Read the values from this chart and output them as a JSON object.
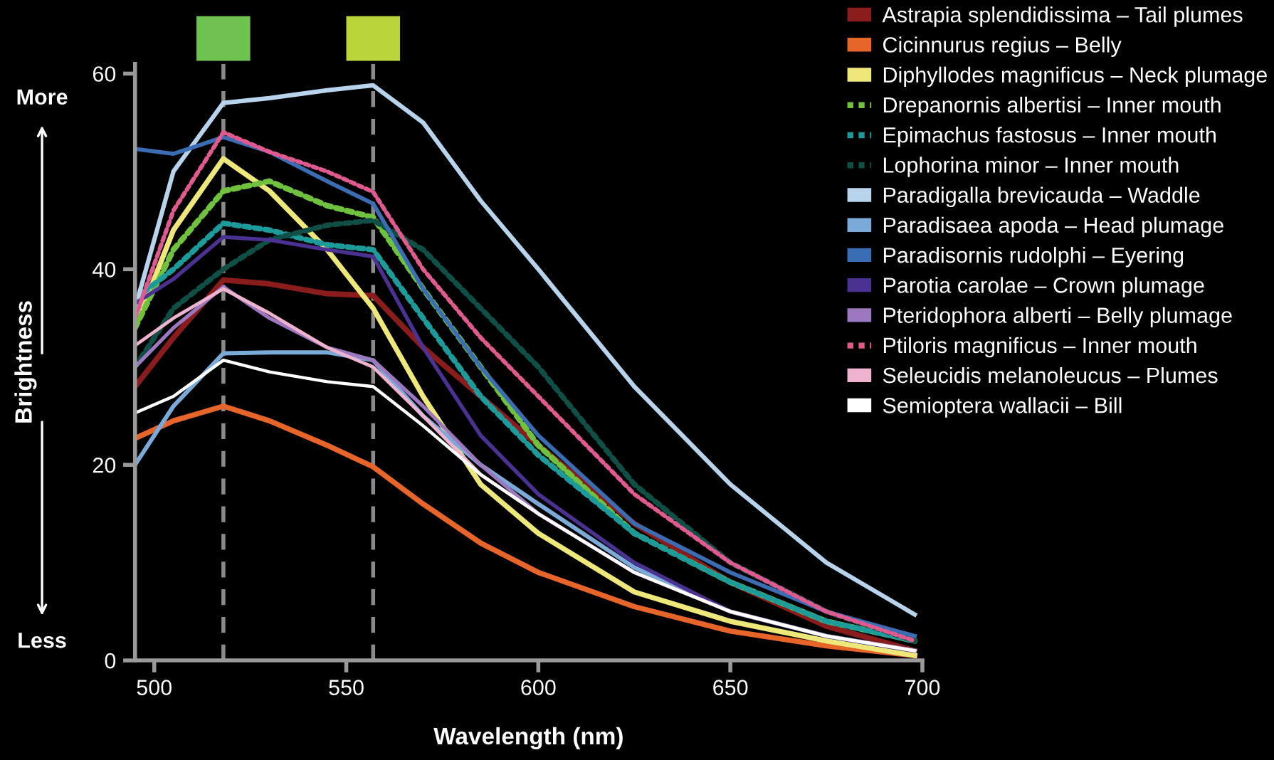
{
  "chart_data": {
    "type": "line",
    "xlabel": "Wavelength (nm)",
    "ylabel": "Brightness",
    "annotations": [
      "More",
      "Less"
    ],
    "x": [
      495,
      505,
      518,
      530,
      545,
      557,
      570,
      585,
      600,
      625,
      650,
      675,
      698
    ],
    "xlim": [
      495,
      700
    ],
    "xticks": [
      500,
      550,
      600,
      650,
      700
    ],
    "ylim": [
      0,
      61
    ],
    "yticks": [
      0,
      20,
      40,
      60
    ],
    "grid": false,
    "legend": "right",
    "marker": "none",
    "ref_lines": [
      {
        "axis": "x",
        "value": 518,
        "color": "#8a8a8a",
        "line_style": "dashed"
      },
      {
        "axis": "x",
        "value": 557,
        "color": "#8a8a8a",
        "line_style": "dashed"
      }
    ],
    "series": [
      {
        "name": "Astrapia splendidissima – Tail plumes",
        "color": "#8b1c1c",
        "line_style": "solid",
        "values": [
          28,
          33,
          38.9,
          38.5,
          37.5,
          37.3,
          32,
          27,
          22,
          14,
          8,
          3.5,
          1
        ]
      },
      {
        "name": "Cicinnurus regius – Belly",
        "color": "#e8652a",
        "line_style": "solid",
        "values": [
          22.7,
          24.5,
          26,
          24.5,
          22,
          19.8,
          16,
          12,
          9,
          5.5,
          3,
          1.5,
          0.5
        ]
      },
      {
        "name": "Diphyllodes magnificus – Neck plumage",
        "color": "#eee77a",
        "line_style": "solid",
        "values": [
          34,
          44,
          51.3,
          48,
          42,
          36,
          27,
          18,
          13,
          7,
          4,
          2,
          0.5
        ]
      },
      {
        "name": "Drepanornis albertisi – Inner mouth",
        "color": "#6fc13e",
        "line_style": "dotted",
        "values": [
          34,
          42,
          48,
          49,
          46.5,
          45.3,
          38,
          30,
          22,
          13,
          8,
          4,
          2
        ]
      },
      {
        "name": "Epimachus fastosus – Inner mouth",
        "color": "#1d9a9a",
        "line_style": "dotted",
        "values": [
          37,
          40,
          44.7,
          44,
          42.5,
          42,
          35,
          27,
          21,
          13,
          8,
          4,
          2
        ]
      },
      {
        "name": "Lophorina minor – Inner mouth",
        "color": "#0f4f45",
        "line_style": "dotted",
        "values": [
          30,
          36,
          40,
          43,
          44.5,
          45,
          42,
          36,
          30,
          18,
          10,
          5,
          2
        ]
      },
      {
        "name": "Paradigalla brevicauda – Waddle",
        "color": "#b8d4ec",
        "line_style": "solid",
        "values": [
          36,
          50,
          57,
          57.5,
          58.3,
          58.8,
          55,
          47,
          40,
          28,
          18,
          10,
          4.7
        ]
      },
      {
        "name": "Paradisaea apoda – Head plumage",
        "color": "#7aaad8",
        "line_style": "solid",
        "values": [
          20,
          26,
          31.4,
          31.5,
          31.5,
          30.7,
          25,
          20,
          16,
          9.5,
          5,
          2.5,
          1
        ]
      },
      {
        "name": "Paradisornis rudolphi – Eyering",
        "color": "#3a6db3",
        "line_style": "solid",
        "values": [
          52.3,
          51.8,
          53.5,
          52,
          49,
          46.7,
          38,
          30,
          23,
          14,
          9,
          5,
          2.5
        ]
      },
      {
        "name": "Parotia carolae – Crown plumage",
        "color": "#4a3192",
        "line_style": "solid",
        "values": [
          36.5,
          39,
          43.3,
          43,
          42,
          41.3,
          32,
          23,
          17,
          10,
          5,
          2.5,
          1
        ]
      },
      {
        "name": "Pteridophora alberti – Belly plumage",
        "color": "#9b78c0",
        "line_style": "solid",
        "values": [
          30,
          34,
          38.2,
          35,
          32,
          30.7,
          26,
          20,
          15,
          9,
          5,
          2.5,
          1
        ]
      },
      {
        "name": "Ptiloris magnificus – Inner mouth",
        "color": "#e05a90",
        "line_style": "dotted",
        "values": [
          35,
          46,
          54,
          52,
          50,
          47.9,
          40,
          33,
          27,
          17,
          10,
          5,
          2
        ]
      },
      {
        "name": "Seleucidis melanoleucus – Plumes",
        "color": "#efb3cf",
        "line_style": "solid",
        "values": [
          32.2,
          35,
          38,
          35.5,
          32,
          30,
          25,
          19,
          15,
          9,
          5,
          2.5,
          1
        ]
      },
      {
        "name": "Semioptera wallacii – Bill",
        "color": "#ffffff",
        "line_style": "solid",
        "values": [
          25.3,
          27,
          30.7,
          29.5,
          28.5,
          28,
          24,
          19,
          15,
          9,
          5,
          2.5,
          1
        ]
      }
    ]
  }
}
